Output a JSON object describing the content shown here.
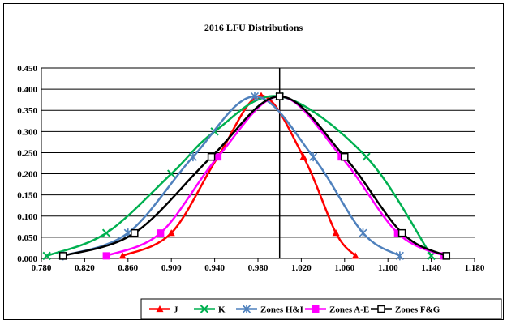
{
  "chart_data": {
    "type": "line",
    "title": "2016 LFU Distributions",
    "xlim": [
      0.78,
      1.18
    ],
    "ylim": [
      0.0,
      0.45
    ],
    "x_ticks": [
      "0.780",
      "0.820",
      "0.860",
      "0.900",
      "0.940",
      "0.980",
      "1.020",
      "1.060",
      "1.100",
      "1.140",
      "1.180"
    ],
    "y_ticks": [
      "0.000",
      "0.050",
      "0.100",
      "0.150",
      "0.200",
      "0.250",
      "0.300",
      "0.350",
      "0.400",
      "0.450"
    ],
    "grid": "horizontal",
    "reference_line_x": 1.0,
    "legend_position": "bottom",
    "series": [
      {
        "name": "J",
        "color": "#ff0000",
        "marker": "triangle",
        "x": [
          0.855,
          0.9,
          0.943,
          0.983,
          1.022,
          1.052,
          1.07
        ],
        "y": [
          0.006,
          0.06,
          0.24,
          0.385,
          0.24,
          0.06,
          0.006
        ]
      },
      {
        "name": "K",
        "color": "#00b050",
        "marker": "x",
        "x": [
          0.785,
          0.84,
          0.9,
          0.94,
          1.0,
          1.08,
          1.14
        ],
        "y": [
          0.006,
          0.06,
          0.2,
          0.3,
          0.383,
          0.24,
          0.006
        ]
      },
      {
        "name": "Zones H&I",
        "color": "#4f81bd",
        "marker": "star",
        "x": [
          0.8,
          0.86,
          0.92,
          0.977,
          1.031,
          1.077,
          1.111
        ],
        "y": [
          0.006,
          0.06,
          0.24,
          0.383,
          0.24,
          0.06,
          0.006
        ]
      },
      {
        "name": "Zones A-E",
        "color": "#ff00ff",
        "marker": "square",
        "x": [
          0.84,
          0.89,
          0.943,
          1.0,
          1.057,
          1.109,
          1.152
        ],
        "y": [
          0.006,
          0.06,
          0.24,
          0.383,
          0.24,
          0.06,
          0.006
        ]
      },
      {
        "name": "Zones F&G",
        "color": "#000000",
        "marker": "square-open",
        "x": [
          0.8,
          0.866,
          0.937,
          1.0,
          1.06,
          1.113,
          1.154
        ],
        "y": [
          0.006,
          0.06,
          0.24,
          0.383,
          0.24,
          0.06,
          0.006
        ]
      }
    ]
  }
}
